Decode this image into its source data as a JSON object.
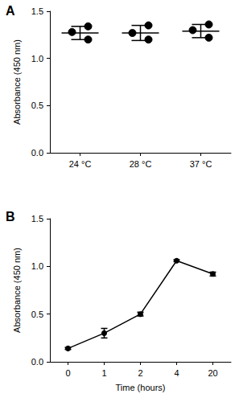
{
  "chart_data": [
    {
      "type": "scatter",
      "title": "A",
      "categories": [
        "24 °C",
        "28 °C",
        "37 °C"
      ],
      "points": [
        [
          1.34,
          1.28,
          1.2
        ],
        [
          1.35,
          1.27,
          1.2
        ],
        [
          1.36,
          1.3,
          1.22
        ]
      ],
      "values": [
        1.27,
        1.27,
        1.29
      ],
      "error": [
        0.07,
        0.08,
        0.07
      ],
      "ylabel": "Absorbance (450 nm)",
      "ylim": [
        0,
        1.5
      ],
      "yticks": [
        {
          "value": 0,
          "label": "0.0"
        },
        {
          "value": 0.5,
          "label": "0.5"
        },
        {
          "value": 1,
          "label": "1.0"
        },
        {
          "value": 1.5,
          "label": "1.5"
        }
      ],
      "color": "#000000",
      "marker": "circle",
      "grid": false
    },
    {
      "type": "line",
      "title": "B",
      "categories": [
        "0",
        "1",
        "2",
        "4",
        "20"
      ],
      "values": [
        0.14,
        0.3,
        0.5,
        1.06,
        0.92
      ],
      "error": [
        0.01,
        0.05,
        0.02,
        0.01,
        0.02
      ],
      "xlabel": "Time (hours)",
      "ylabel": "Absorbance (450 nm)",
      "ylim": [
        0,
        1.5
      ],
      "yticks": [
        {
          "value": 0,
          "label": "0.0"
        },
        {
          "value": 0.5,
          "label": "0.5"
        },
        {
          "value": 1,
          "label": "1.0"
        },
        {
          "value": 1.5,
          "label": "1.5"
        }
      ],
      "color": "#000000",
      "marker": "circle",
      "grid": false
    }
  ]
}
